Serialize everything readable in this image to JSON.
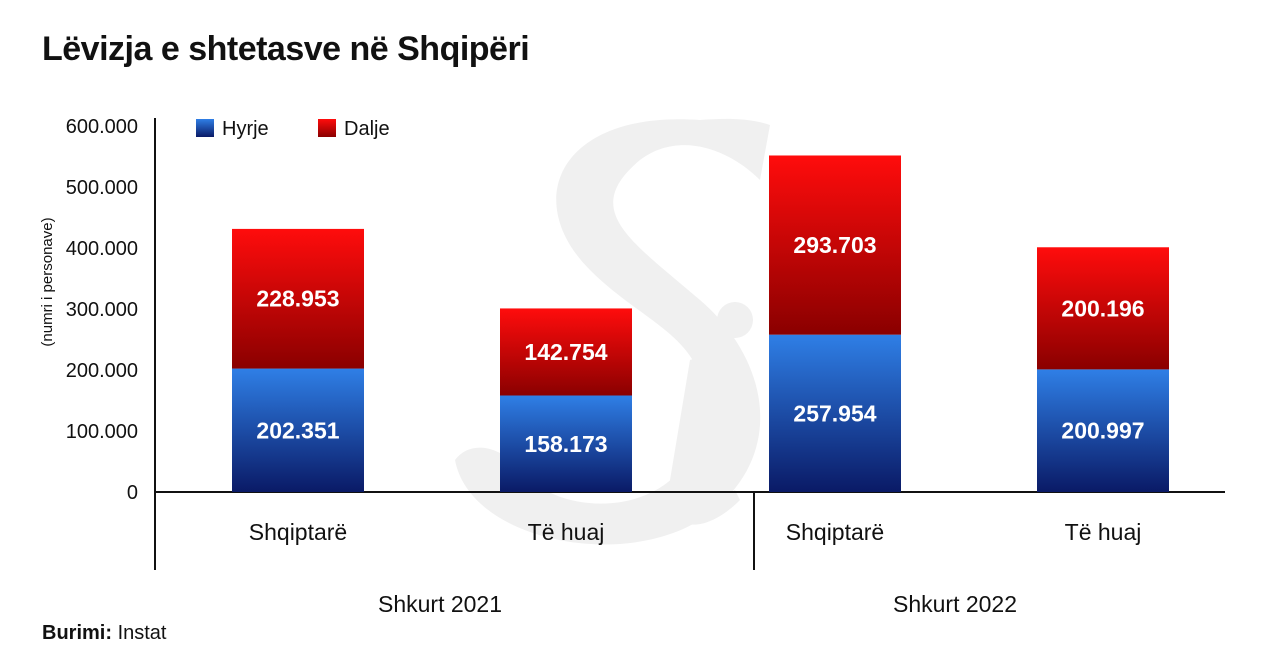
{
  "title": "Lëvizja e shtetasve në Shqipëri",
  "source": {
    "label": "Burimi:",
    "value": "Instat"
  },
  "colors": {
    "hyrje_top": "#2f7fe6",
    "hyrje_bottom": "#0a1a66",
    "dalje_top": "#ff0c0c",
    "dalje_bottom": "#8a0000",
    "watermark": "#f0f0f0"
  },
  "chart_data": {
    "type": "bar",
    "stacked": true,
    "ylabel": "(numri i personave)",
    "ylim": [
      0,
      600000
    ],
    "yticks": [
      "0",
      "100.000",
      "200.000",
      "300.000",
      "400.000",
      "500.000",
      "600.000"
    ],
    "legend_position": "top-left",
    "groups": [
      "Shkurt 2021",
      "Shkurt 2022"
    ],
    "categories": [
      "Shqiptarë",
      "Të huaj",
      "Shqiptarë",
      "Të huaj"
    ],
    "series": [
      {
        "name": "Hyrje",
        "values": [
          202351,
          158173,
          257954,
          200997
        ],
        "labels": [
          "202.351",
          "158.173",
          "257.954",
          "200.997"
        ]
      },
      {
        "name": "Dalje",
        "values": [
          228953,
          142754,
          293703,
          200196
        ],
        "labels": [
          "228.953",
          "142.754",
          "293.703",
          "200.196"
        ]
      }
    ]
  }
}
